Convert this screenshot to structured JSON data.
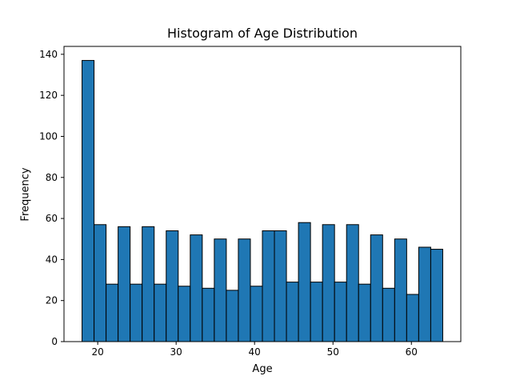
{
  "chart_data": {
    "type": "histogram",
    "title": "Histogram of Age Distribution",
    "xlabel": "Age",
    "ylabel": "Frequency",
    "bar_color": "#1f77b4",
    "edge_color": "#000000",
    "bin_start": 18,
    "bin_width": 1.5333,
    "values": [
      137,
      57,
      28,
      56,
      28,
      56,
      28,
      54,
      27,
      52,
      26,
      50,
      25,
      50,
      27,
      54,
      54,
      29,
      58,
      29,
      57,
      29,
      57,
      28,
      52,
      26,
      50,
      23,
      46,
      45
    ],
    "xlim": [
      15.7,
      66.3
    ],
    "ylim": [
      0,
      143.85
    ],
    "xticks": [
      20,
      30,
      40,
      50,
      60
    ],
    "yticks": [
      0,
      20,
      40,
      60,
      80,
      100,
      120,
      140
    ],
    "grid": false,
    "legend": "none"
  }
}
